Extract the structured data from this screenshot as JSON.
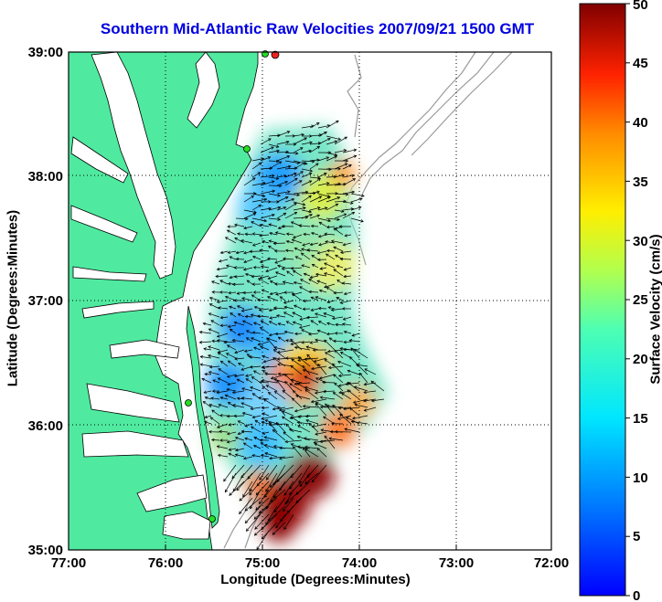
{
  "map": {
    "title": "Southern Mid-Atlantic Raw Velocities 2007/09/21 1500 GMT",
    "xlabel": "Longitude (Degrees:Minutes)",
    "ylabel": "Latitude (Degrees:Minutes)",
    "lon_ticks": [
      "77:00",
      "76:00",
      "75:00",
      "74:00",
      "73:00",
      "72:00"
    ],
    "lat_ticks": [
      "39:00",
      "38:00",
      "37:00",
      "36:00",
      "35:00"
    ],
    "lon_range": [
      -77,
      -72
    ],
    "lat_range": [
      35,
      39
    ],
    "grid": true,
    "colors": {
      "land": "#4feaa0",
      "water": "#ffffff",
      "coastline": "#000000",
      "bathymetry": "#9a9a9a",
      "vectors": "#000000",
      "station_active": "#22dd22",
      "station_alert": "#ee2222"
    },
    "stations": [
      {
        "lon": -74.88,
        "lat": 38.98,
        "status": "alert"
      },
      {
        "lon": -74.98,
        "lat": 38.95,
        "status": "active"
      },
      {
        "lon": -75.1,
        "lat": 38.23,
        "status": "active"
      },
      {
        "lon": -75.75,
        "lat": 36.18,
        "status": "active"
      },
      {
        "lon": -75.47,
        "lat": 35.25,
        "status": "active"
      }
    ]
  },
  "colorbar": {
    "label": "Surface Velocity (cm/s)",
    "ticks": [
      "50",
      "45",
      "40",
      "35",
      "30",
      "25",
      "20",
      "15",
      "10",
      "5",
      "0"
    ],
    "range": [
      0,
      50
    ],
    "colormap": "jet"
  }
}
